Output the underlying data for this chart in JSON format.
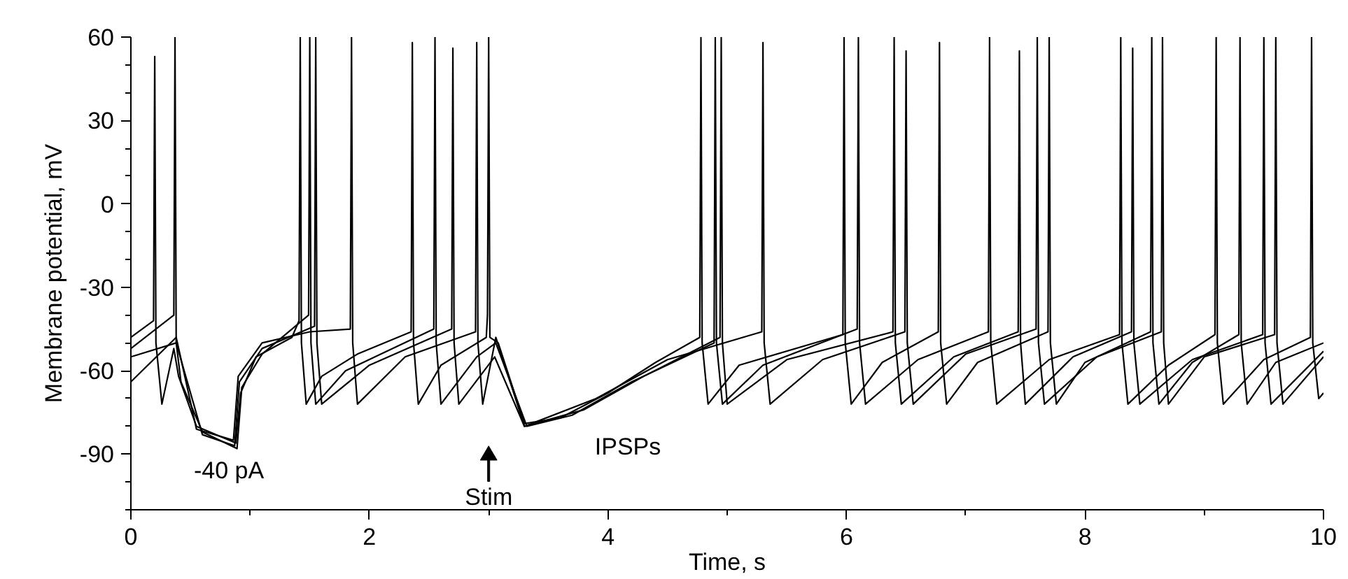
{
  "chart_data": {
    "type": "line",
    "xlabel": "Time, s",
    "ylabel": "Membrane potential, mV",
    "xlim": [
      0,
      10
    ],
    "ylim": [
      -110,
      60
    ],
    "xticks": [
      0,
      {
        "value": 1,
        "label": null
      },
      2,
      {
        "value": 3,
        "label": null
      },
      4,
      {
        "value": 5,
        "label": null
      },
      6,
      {
        "value": 7,
        "label": null
      },
      8,
      {
        "value": 9,
        "label": null
      },
      10
    ],
    "yticks": [
      {
        "value": -110,
        "label": null
      },
      {
        "value": -100,
        "label": null
      },
      -90,
      {
        "value": -80,
        "label": null
      },
      {
        "value": -70,
        "label": null
      },
      -60,
      {
        "value": -50,
        "label": null
      },
      {
        "value": -40,
        "label": null
      },
      -30,
      {
        "value": -20,
        "label": null
      },
      {
        "value": -10,
        "label": null
      },
      0,
      {
        "value": 10,
        "label": null
      },
      {
        "value": 20,
        "label": null
      },
      30,
      {
        "value": 40,
        "label": null
      },
      {
        "value": 50,
        "label": null
      },
      60
    ],
    "grid": false,
    "marker": "none",
    "line_style": "solid",
    "annotations": [
      "-40 pA",
      "IPSPs"
    ],
    "ref_lines": [
      {
        "axis": "x",
        "value": 3.0,
        "label": "Stim"
      }
    ],
    "series": [
      {
        "color": "#000000",
        "x": [
          0,
          0.19,
          0.2,
          0.21,
          0.26,
          0.36,
          0.4,
          0.55,
          0.88,
          0.92,
          1.05,
          1.35,
          1.41,
          1.42,
          1.43,
          1.47,
          1.6,
          1.9,
          2.35,
          2.36,
          2.37,
          2.41,
          2.6,
          2.98,
          2.99,
          3.0,
          3.01,
          3.08,
          3.3,
          3.6,
          4.0,
          4.4,
          4.77,
          4.78,
          4.79,
          4.84,
          5.1,
          5.97,
          5.98,
          5.99,
          6.04,
          6.3,
          6.77,
          6.78,
          6.79,
          6.84,
          7.1,
          7.69,
          7.7,
          7.71,
          7.76,
          8.0,
          8.55,
          8.56,
          8.57,
          8.62,
          8.9,
          9.29,
          9.3,
          9.31,
          9.36,
          9.6,
          10
        ],
        "values": [
          -48,
          -42,
          53,
          -50,
          -72,
          -52,
          -62,
          -80,
          -86,
          -68,
          -55,
          -48,
          -42,
          60,
          -50,
          -72,
          -62,
          -54,
          -46,
          58,
          -50,
          -72,
          -58,
          -48,
          -40,
          60,
          -48,
          -50,
          -79,
          -77,
          -68,
          -57,
          -48,
          60,
          -50,
          -72,
          -58,
          -47,
          60,
          -50,
          -72,
          -57,
          -46,
          58,
          -50,
          -72,
          -57,
          -46,
          60,
          -50,
          -72,
          -57,
          -46,
          60,
          -50,
          -72,
          -57,
          -47,
          60,
          -50,
          -72,
          -57,
          -50
        ]
      },
      {
        "color": "#000000",
        "x": [
          0,
          0.36,
          0.37,
          0.38,
          0.42,
          0.6,
          0.89,
          0.93,
          1.1,
          1.49,
          1.5,
          1.51,
          1.55,
          1.8,
          2.54,
          2.55,
          2.56,
          2.6,
          2.9,
          3.06,
          3.32,
          3.7,
          4.2,
          4.89,
          4.9,
          4.91,
          4.96,
          5.3,
          6.09,
          6.1,
          6.11,
          6.16,
          6.6,
          7.19,
          7.2,
          7.21,
          7.26,
          7.7,
          8.29,
          8.3,
          8.31,
          8.36,
          8.7,
          9.09,
          9.1,
          9.11,
          9.16,
          9.5,
          9.89,
          9.9,
          9.91,
          9.96,
          10
        ],
        "values": [
          -52,
          -40,
          60,
          -50,
          -64,
          -82,
          -88,
          -66,
          -54,
          -40,
          60,
          -50,
          -72,
          -60,
          -45,
          60,
          -50,
          -72,
          -55,
          -50,
          -80,
          -76,
          -64,
          -50,
          60,
          -50,
          -72,
          -58,
          -45,
          60,
          -50,
          -72,
          -56,
          -46,
          60,
          -50,
          -72,
          -56,
          -47,
          60,
          -50,
          -72,
          -58,
          -47,
          60,
          -50,
          -72,
          -56,
          -48,
          60,
          -50,
          -70,
          -68
        ]
      },
      {
        "color": "#000000",
        "x": [
          0,
          0.38,
          0.6,
          0.87,
          0.91,
          1.1,
          1.54,
          1.55,
          1.56,
          1.6,
          2.0,
          2.69,
          2.7,
          2.71,
          2.75,
          3.05,
          3.3,
          3.8,
          4.3,
          4.94,
          4.95,
          4.96,
          5.0,
          5.5,
          6.39,
          6.4,
          6.41,
          6.46,
          6.9,
          7.44,
          7.45,
          7.46,
          7.5,
          7.9,
          8.39,
          8.4,
          8.41,
          8.46,
          8.9,
          9.49,
          9.5,
          9.51,
          9.56,
          10
        ],
        "values": [
          -55,
          -50,
          -83,
          -87,
          -64,
          -52,
          -44,
          60,
          -50,
          -72,
          -58,
          -45,
          56,
          -50,
          -72,
          -55,
          -80,
          -74,
          -62,
          -48,
          60,
          -50,
          -72,
          -56,
          -46,
          60,
          -50,
          -72,
          -55,
          -46,
          55,
          -50,
          -72,
          -55,
          -46,
          56,
          -50,
          -72,
          -56,
          -47,
          60,
          -50,
          -72,
          -53
        ]
      },
      {
        "color": "#000000",
        "x": [
          0,
          0.38,
          0.55,
          0.86,
          0.9,
          1.1,
          1.5,
          1.84,
          1.85,
          1.86,
          1.9,
          2.3,
          2.89,
          2.9,
          2.91,
          2.95,
          3.06,
          3.3,
          3.9,
          4.5,
          5.29,
          5.3,
          5.31,
          5.36,
          5.8,
          6.49,
          6.5,
          6.51,
          6.56,
          7.0,
          7.59,
          7.6,
          7.61,
          7.66,
          8.1,
          8.64,
          8.65,
          8.66,
          8.7,
          9.0,
          9.59,
          9.6,
          9.61,
          9.66,
          10
        ],
        "values": [
          -64,
          -48,
          -81,
          -85,
          -62,
          -50,
          -46,
          -45,
          60,
          -50,
          -72,
          -55,
          -46,
          58,
          -50,
          -72,
          -48,
          -80,
          -70,
          -56,
          -46,
          58,
          -50,
          -72,
          -56,
          -46,
          55,
          -50,
          -72,
          -54,
          -45,
          60,
          -50,
          -72,
          -55,
          -46,
          60,
          -50,
          -72,
          -55,
          -47,
          60,
          -50,
          -72,
          -55
        ]
      }
    ]
  }
}
